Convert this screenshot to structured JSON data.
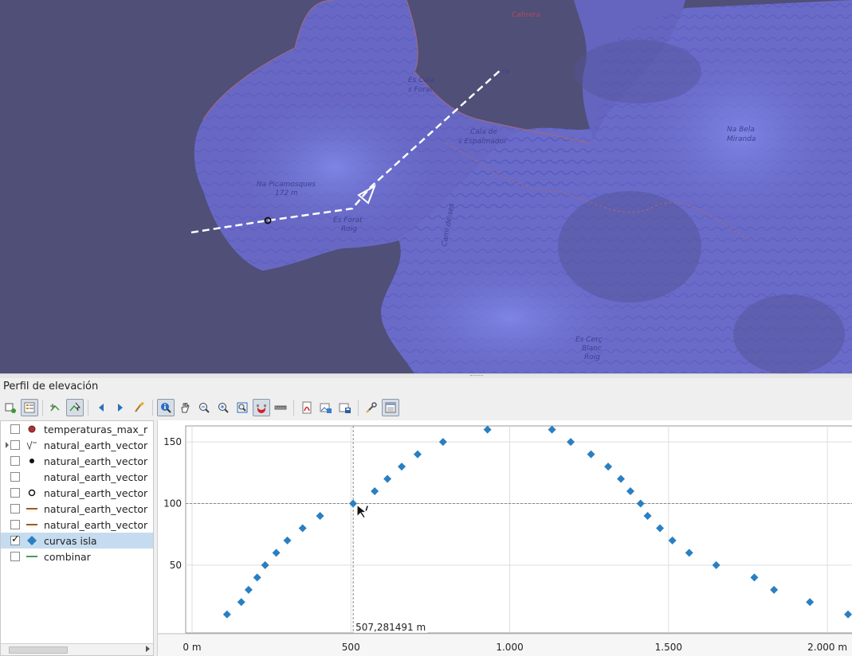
{
  "panel_title": "Perfil de elevación",
  "map": {
    "labels": [
      {
        "text": "Cabrera"
      },
      {
        "text": "Es Cala"
      },
      {
        "text": "s Forat"
      },
      {
        "text": "Cala de"
      },
      {
        "text": "s Espalmador"
      },
      {
        "text": "Na Picamosques"
      },
      {
        "text": "172 m"
      },
      {
        "text": "Es Forat"
      },
      {
        "text": "Roig"
      },
      {
        "text": "Camí de ses"
      },
      {
        "text": "Na Bela"
      },
      {
        "text": "Miranda"
      },
      {
        "text": "Es Cerç"
      },
      {
        "text": "Blanc"
      },
      {
        "text": "Roig"
      },
      {
        "text": "ra"
      }
    ]
  },
  "toolbar": {
    "buttons": [
      {
        "name": "new-profile-icon",
        "active": false
      },
      {
        "name": "layer-tree-icon",
        "active": true
      },
      {
        "name": "capture-curve-icon",
        "active": false
      },
      {
        "name": "capture-curve-from-feature-icon",
        "active": true
      },
      {
        "name": "previous-icon",
        "active": false
      },
      {
        "name": "next-icon",
        "active": false
      },
      {
        "name": "clear-icon",
        "active": false
      },
      {
        "name": "identify-icon",
        "active": true
      },
      {
        "name": "pan-icon",
        "active": false
      },
      {
        "name": "zoom-x-icon",
        "active": false
      },
      {
        "name": "zoom-in-icon",
        "active": false
      },
      {
        "name": "zoom-full-icon",
        "active": false
      },
      {
        "name": "snapping-icon",
        "active": true
      },
      {
        "name": "measure-icon",
        "active": false
      },
      {
        "name": "export-pdf-icon",
        "active": false
      },
      {
        "name": "export-image-icon",
        "active": false
      },
      {
        "name": "export-3d-icon",
        "active": false
      },
      {
        "name": "settings-icon",
        "active": false
      },
      {
        "name": "options-icon",
        "active": true
      }
    ]
  },
  "layers": [
    {
      "label": "temperaturas_max_r",
      "checked": false,
      "selected": false,
      "expandable": false,
      "symbol": "dot-red"
    },
    {
      "label": "natural_earth_vector",
      "checked": false,
      "selected": false,
      "expandable": true,
      "symbol": "raster"
    },
    {
      "label": "natural_earth_vector",
      "checked": false,
      "selected": false,
      "expandable": false,
      "symbol": "dot-black"
    },
    {
      "label": "natural_earth_vector",
      "checked": false,
      "selected": false,
      "expandable": false,
      "symbol": "none"
    },
    {
      "label": "natural_earth_vector",
      "checked": false,
      "selected": false,
      "expandable": false,
      "symbol": "circle-open"
    },
    {
      "label": "natural_earth_vector",
      "checked": false,
      "selected": false,
      "expandable": false,
      "symbol": "line-brown"
    },
    {
      "label": "natural_earth_vector",
      "checked": false,
      "selected": false,
      "expandable": false,
      "symbol": "line-brown"
    },
    {
      "label": "curvas isla",
      "checked": true,
      "selected": true,
      "expandable": false,
      "symbol": "diamond-blue"
    },
    {
      "label": "combinar",
      "checked": false,
      "selected": false,
      "expandable": false,
      "symbol": "line-green"
    }
  ],
  "colors": {
    "series": "#2a7fc1",
    "map_sea": "#4f4f78",
    "map_land": "#6a6ac8",
    "selection": "#c5dcf0"
  },
  "chart_data": {
    "type": "scatter",
    "xlabel": "",
    "ylabel": "",
    "xlim": [
      -20,
      2080
    ],
    "ylim": [
      -5,
      163
    ],
    "x_ticks": [
      {
        "value": 0,
        "label": "0 m"
      },
      {
        "value": 500,
        "label": "500"
      },
      {
        "value": 1000,
        "label": "1.000"
      },
      {
        "value": 1500,
        "label": "1.500"
      },
      {
        "value": 2000,
        "label": "2.000 m"
      }
    ],
    "y_ticks": [
      {
        "value": 50,
        "label": "50"
      },
      {
        "value": 100,
        "label": "100"
      },
      {
        "value": 150,
        "label": "150"
      }
    ],
    "grid": true,
    "cursor": {
      "x": 507.281491,
      "y": 100,
      "label": "507,281491 m"
    },
    "series": [
      {
        "marker": "diamond",
        "points": [
          [
            110,
            10
          ],
          [
            155,
            20
          ],
          [
            178,
            30
          ],
          [
            205,
            40
          ],
          [
            230,
            50
          ],
          [
            265,
            60
          ],
          [
            300,
            70
          ],
          [
            348,
            80
          ],
          [
            403,
            90
          ],
          [
            507,
            100
          ],
          [
            575,
            110
          ],
          [
            615,
            120
          ],
          [
            660,
            130
          ],
          [
            710,
            140
          ],
          [
            790,
            150
          ],
          [
            930,
            160
          ],
          [
            1133,
            160
          ],
          [
            1192,
            150
          ],
          [
            1256,
            140
          ],
          [
            1310,
            130
          ],
          [
            1350,
            120
          ],
          [
            1380,
            110
          ],
          [
            1412,
            100
          ],
          [
            1434,
            90
          ],
          [
            1473,
            80
          ],
          [
            1512,
            70
          ],
          [
            1565,
            60
          ],
          [
            1650,
            50
          ],
          [
            1770,
            40
          ],
          [
            1832,
            30
          ],
          [
            1945,
            20
          ],
          [
            2065,
            10
          ]
        ]
      }
    ]
  }
}
